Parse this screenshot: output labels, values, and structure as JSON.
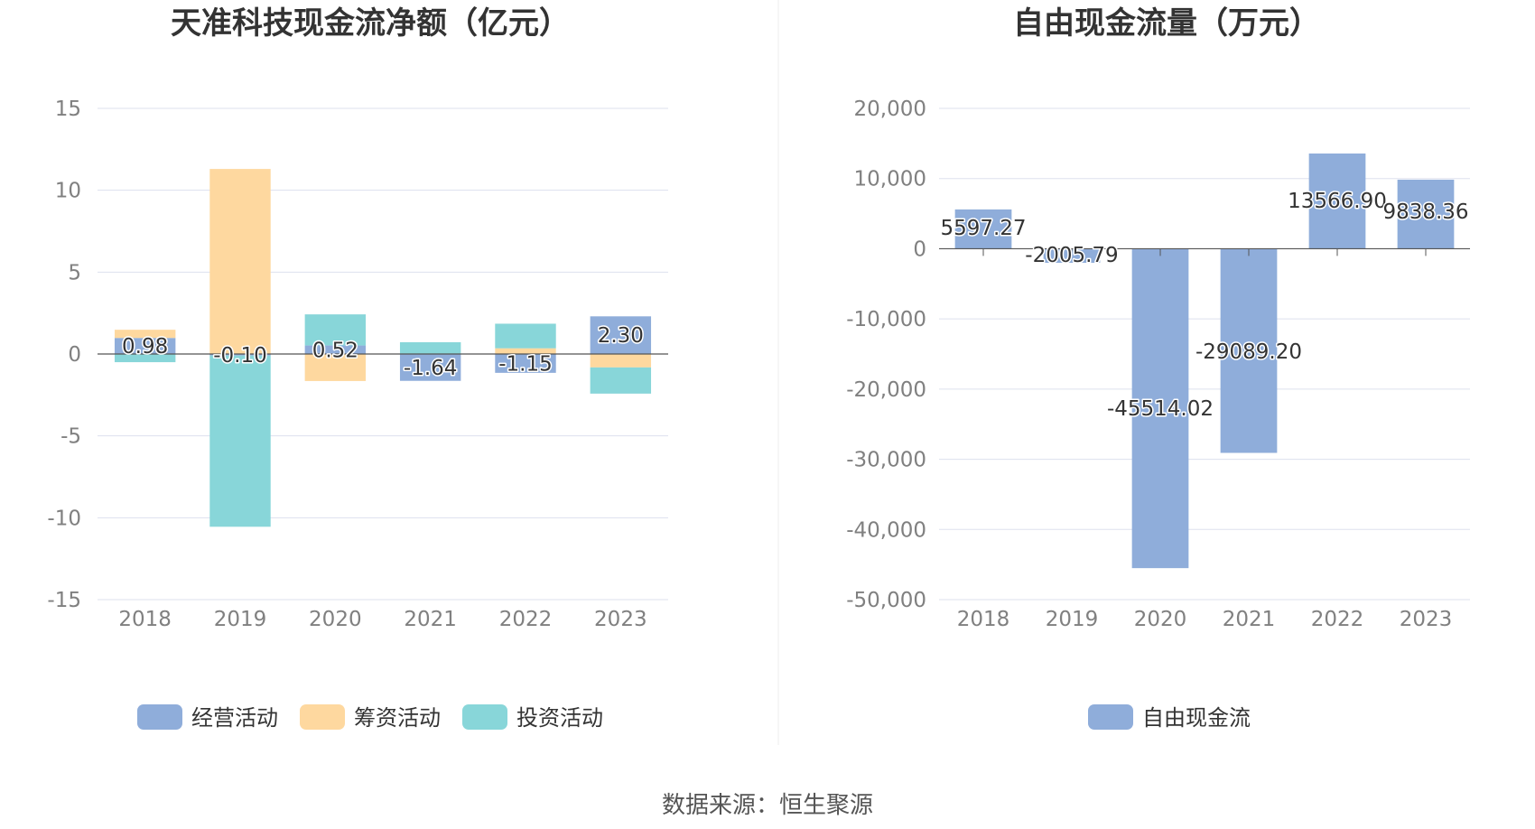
{
  "footer": {
    "source": "数据来源：恒生聚源"
  },
  "colors": {
    "operating": "#8fadda",
    "financing": "#fed89f",
    "investing": "#88d6d9",
    "fcf": "#8fadda",
    "grid": "#dde0ee",
    "axis": "#555555"
  },
  "chart_data": [
    {
      "type": "bar",
      "stacked": true,
      "title": "天准科技现金流净额（亿元）",
      "categories": [
        "2018",
        "2019",
        "2020",
        "2021",
        "2022",
        "2023"
      ],
      "ylim": [
        -15,
        15
      ],
      "yticks": [
        15,
        10,
        5,
        0,
        -5,
        -10,
        -15
      ],
      "ytick_labels": [
        "15",
        "10",
        "5",
        "0",
        "-5",
        "-10",
        "-15"
      ],
      "grid": true,
      "legend_position": "bottom",
      "series": [
        {
          "name": "经营活动",
          "color": "#8fadda",
          "values": [
            0.98,
            -0.1,
            0.52,
            -1.64,
            -1.15,
            2.3
          ]
        },
        {
          "name": "筹资活动",
          "color": "#fed89f",
          "values": [
            0.5,
            11.3,
            -1.65,
            0.0,
            0.35,
            -0.82
          ]
        },
        {
          "name": "投资活动",
          "color": "#88d6d9",
          "values": [
            -0.5,
            -10.45,
            1.9,
            0.72,
            1.5,
            -1.6
          ]
        }
      ],
      "data_labels": [
        "0.98",
        "-0.10",
        "0.52",
        "-1.64",
        "-1.15",
        "2.30"
      ]
    },
    {
      "type": "bar",
      "title": "自由现金流量（万元）",
      "categories": [
        "2018",
        "2019",
        "2020",
        "2021",
        "2022",
        "2023"
      ],
      "ylim": [
        -50000,
        20000
      ],
      "yticks": [
        20000,
        10000,
        0,
        -10000,
        -20000,
        -30000,
        -40000,
        -50000
      ],
      "ytick_labels": [
        "20,000",
        "10,000",
        "0",
        "-10,000",
        "-20,000",
        "-30,000",
        "-40,000",
        "-50,000"
      ],
      "grid": true,
      "legend_position": "bottom",
      "series": [
        {
          "name": "自由现金流",
          "color": "#8fadda",
          "values": [
            5597.27,
            -2005.79,
            -45514.02,
            -29089.2,
            13566.9,
            9838.36
          ]
        }
      ],
      "data_labels": [
        "5597.27",
        "-2005.79",
        "-45514.02",
        "-29089.20",
        "13566.90",
        "9838.36"
      ]
    }
  ]
}
